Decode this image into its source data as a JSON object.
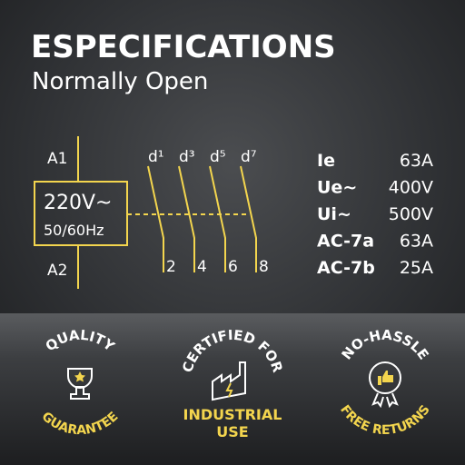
{
  "header": {
    "title": "ESPECIFICATIONS",
    "subtitle": "Normally Open"
  },
  "diagram": {
    "coil_top": "A1",
    "coil_voltage": "220V~",
    "coil_frequency": "50/60Hz",
    "coil_bottom": "A2",
    "contacts_top": [
      "d¹",
      "d³",
      "d⁵",
      "d⁷"
    ],
    "contacts_bottom": [
      "2",
      "4",
      "6",
      "8"
    ]
  },
  "specs": [
    [
      "Ie",
      "63A"
    ],
    [
      "Ue~",
      "400V"
    ],
    [
      "Ui~",
      "500V"
    ],
    [
      "AC-7a",
      "63A"
    ],
    [
      "AC-7b",
      "25A"
    ]
  ],
  "badges": [
    {
      "top": "QUALITY",
      "bottom": "GUARANTEE"
    },
    {
      "top": "CERTIFIED FOR",
      "bottom": [
        "INDUSTRIAL",
        "USE"
      ]
    },
    {
      "top": "NO-HASSLE",
      "bottom": "FREE RETURNS"
    }
  ]
}
